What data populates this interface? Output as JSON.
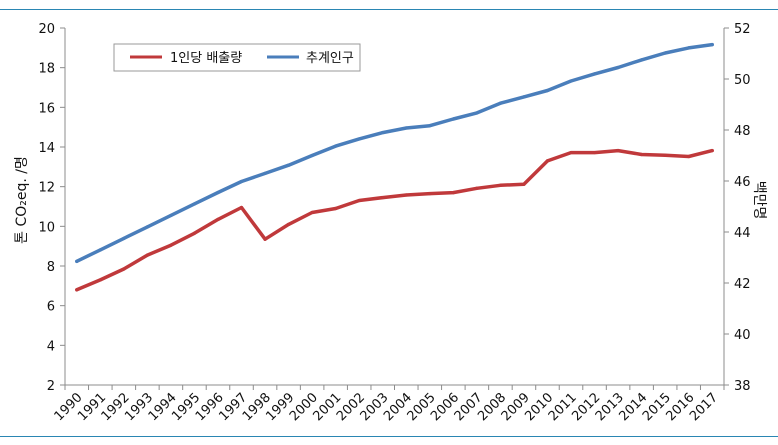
{
  "chart_data": {
    "type": "line",
    "categories": [
      "1990",
      "1991",
      "1992",
      "1993",
      "1994",
      "1995",
      "1996",
      "1997",
      "1998",
      "1999",
      "2000",
      "2001",
      "2002",
      "2003",
      "2004",
      "2005",
      "2006",
      "2007",
      "2008",
      "2009",
      "2010",
      "2011",
      "2012",
      "2013",
      "2014",
      "2015",
      "2016",
      "2017"
    ],
    "series": [
      {
        "name": "1인당 배출량",
        "axis": "left",
        "color": "#c0393b",
        "values": [
          6.8,
          7.3,
          7.85,
          8.55,
          9.05,
          9.65,
          10.35,
          10.95,
          9.35,
          10.1,
          10.7,
          10.9,
          11.3,
          11.45,
          11.58,
          11.65,
          11.7,
          11.92,
          12.07,
          12.12,
          13.3,
          13.72,
          13.72,
          13.82,
          13.62,
          13.58,
          13.52,
          13.82
        ]
      },
      {
        "name": "추계인구",
        "axis": "right",
        "color": "#4a7ebb",
        "values": [
          42.85,
          43.3,
          43.75,
          44.2,
          44.65,
          45.1,
          45.55,
          45.98,
          46.3,
          46.62,
          47.0,
          47.37,
          47.65,
          47.9,
          48.08,
          48.17,
          48.43,
          48.67,
          49.05,
          49.3,
          49.55,
          49.92,
          50.2,
          50.45,
          50.75,
          51.02,
          51.22,
          51.35
        ]
      }
    ],
    "y_left": {
      "label": "톤 CO₂eq. /명",
      "min": 2,
      "max": 20,
      "step": 2,
      "ticks": [
        "2",
        "4",
        "6",
        "8",
        "10",
        "12",
        "14",
        "16",
        "18",
        "20"
      ]
    },
    "y_right": {
      "label": "백만명",
      "min": 38,
      "max": 52,
      "step": 2,
      "ticks": [
        "38",
        "40",
        "42",
        "44",
        "46",
        "48",
        "50",
        "52"
      ]
    },
    "legend": {
      "position": "top-left",
      "items": [
        "1인당 배출량",
        "추계인구"
      ]
    },
    "grid": false
  }
}
